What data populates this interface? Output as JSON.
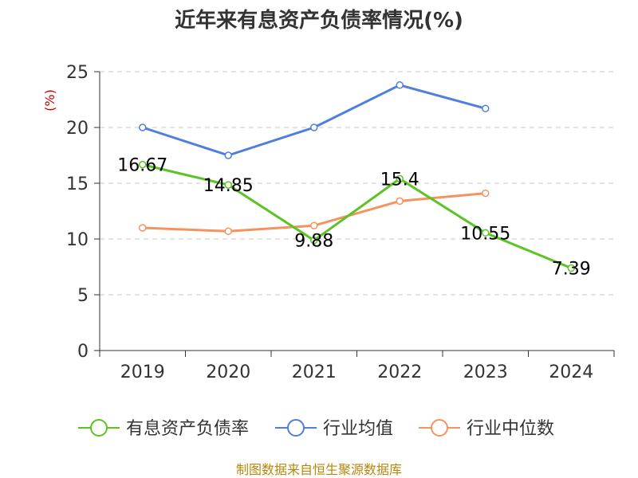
{
  "chart_data": {
    "type": "line",
    "title": "近年来有息资产负债率情况(%)",
    "ylabel": "(%)",
    "categories": [
      "2019",
      "2020",
      "2021",
      "2022",
      "2023",
      "2024"
    ],
    "ylim": [
      0,
      25
    ],
    "yticks": [
      0,
      5,
      10,
      15,
      20,
      25
    ],
    "grid": true,
    "legend_position": "bottom",
    "series": [
      {
        "name": "有息资产负债率",
        "color": "#5bc424",
        "values": [
          16.67,
          14.85,
          9.88,
          15.4,
          10.55,
          7.39
        ],
        "data_labels": true
      },
      {
        "name": "行业均值",
        "color": "#4f7fdd",
        "values": [
          20.0,
          17.5,
          20.0,
          23.8,
          21.7,
          null
        ],
        "data_labels": false
      },
      {
        "name": "行业中位数",
        "color": "#f5935e",
        "values": [
          11.0,
          10.7,
          11.2,
          13.4,
          14.1,
          null
        ],
        "data_labels": false
      }
    ],
    "source": "制图数据来自恒生聚源数据库"
  }
}
